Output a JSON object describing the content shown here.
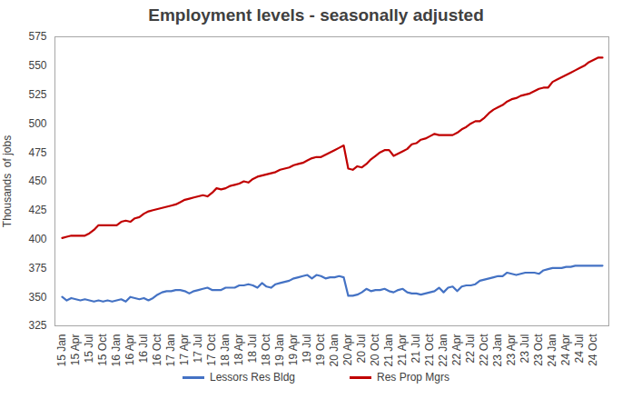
{
  "chart_data": {
    "type": "line",
    "title": "Employment levels - seasonally adjusted",
    "y_label": "Thousands  of jobs",
    "categories": [
      "15 Jan",
      null,
      null,
      "15 Apr",
      null,
      null,
      "15 Jul",
      null,
      null,
      "15 Oct",
      null,
      null,
      "16 Jan",
      null,
      null,
      "16 Apr",
      null,
      null,
      "16 Jul",
      null,
      null,
      "16 Oct",
      null,
      null,
      "17 Jan",
      null,
      null,
      "17 Apr",
      null,
      null,
      "17 Jul",
      null,
      null,
      "17 Oct",
      null,
      null,
      "18 Jan",
      null,
      null,
      "18 Apr",
      null,
      null,
      "18 Jul",
      null,
      null,
      "18 Oct",
      null,
      null,
      "19 Jan",
      null,
      null,
      "19 Apr",
      null,
      null,
      "19 Jul",
      null,
      null,
      "19 Oct",
      null,
      null,
      "20 Jan",
      null,
      null,
      "20 Apr",
      null,
      null,
      "20 Jul",
      null,
      null,
      "20 Oct",
      null,
      null,
      "21 Jan",
      null,
      null,
      "21 Apr",
      null,
      null,
      "21 Jul",
      null,
      null,
      "21 Oct",
      null,
      null,
      "22 Jan",
      null,
      null,
      "22 Apr",
      null,
      null,
      "22 Jul",
      null,
      null,
      "22 Oct",
      null,
      null,
      "23 Jan",
      null,
      null,
      "23 Apr",
      null,
      null,
      "23 Jul",
      null,
      null,
      "23 Oct",
      null,
      null,
      "24 Jan",
      null,
      null,
      "24 Apr",
      null,
      null,
      "24 Jul",
      null,
      null,
      "24 Oct",
      null,
      null
    ],
    "series": [
      {
        "name": "Lessors Res Bldg",
        "color": "#4472c4",
        "values": [
          350,
          347,
          349,
          348,
          347,
          348,
          347,
          346,
          347,
          346,
          347,
          346,
          347,
          348,
          346,
          350,
          349,
          348,
          349,
          347,
          349,
          352,
          354,
          355,
          355,
          356,
          356,
          355,
          353,
          355,
          356,
          357,
          358,
          356,
          356,
          356,
          358,
          358,
          358,
          360,
          360,
          361,
          360,
          358,
          362,
          359,
          358,
          361,
          362,
          363,
          364,
          366,
          367,
          368,
          369,
          366,
          369,
          368,
          366,
          367,
          367,
          368,
          367,
          351,
          351,
          352,
          354,
          357,
          355,
          356,
          356,
          357,
          355,
          354,
          356,
          357,
          354,
          353,
          353,
          352,
          353,
          354,
          355,
          358,
          354,
          358,
          359,
          355,
          359,
          360,
          360,
          361,
          364,
          365,
          366,
          367,
          368,
          368,
          371,
          370,
          369,
          370,
          371,
          371,
          371,
          370,
          373,
          374,
          375,
          375,
          375,
          376,
          376,
          377,
          377,
          377,
          377,
          377,
          377,
          377
        ]
      },
      {
        "name": "Res Prop Mgrs",
        "color": "#c00000",
        "values": [
          401,
          402,
          403,
          403,
          403,
          403,
          405,
          408,
          412,
          412,
          412,
          412,
          412,
          415,
          416,
          415,
          418,
          419,
          422,
          424,
          425,
          426,
          427,
          428,
          429,
          430,
          432,
          434,
          435,
          436,
          437,
          438,
          437,
          440,
          444,
          443,
          444,
          446,
          447,
          448,
          450,
          449,
          452,
          454,
          455,
          456,
          457,
          458,
          460,
          461,
          462,
          464,
          465,
          466,
          468,
          470,
          471,
          471,
          473,
          475,
          477,
          479,
          481,
          461,
          460,
          463,
          462,
          465,
          469,
          472,
          475,
          477,
          477,
          472,
          474,
          476,
          478,
          482,
          483,
          486,
          487,
          489,
          491,
          490,
          490,
          490,
          490,
          492,
          495,
          497,
          500,
          502,
          502,
          505,
          509,
          512,
          514,
          516,
          519,
          521,
          522,
          524,
          525,
          526,
          528,
          530,
          531,
          531,
          536,
          538,
          540,
          542,
          544,
          546,
          548,
          550,
          553,
          555,
          557,
          557
        ]
      }
    ],
    "ylim": [
      325,
      575
    ],
    "yticks": [
      325,
      350,
      375,
      400,
      425,
      450,
      475,
      500,
      525,
      550,
      575
    ],
    "grid": false,
    "legend": "bottom"
  }
}
